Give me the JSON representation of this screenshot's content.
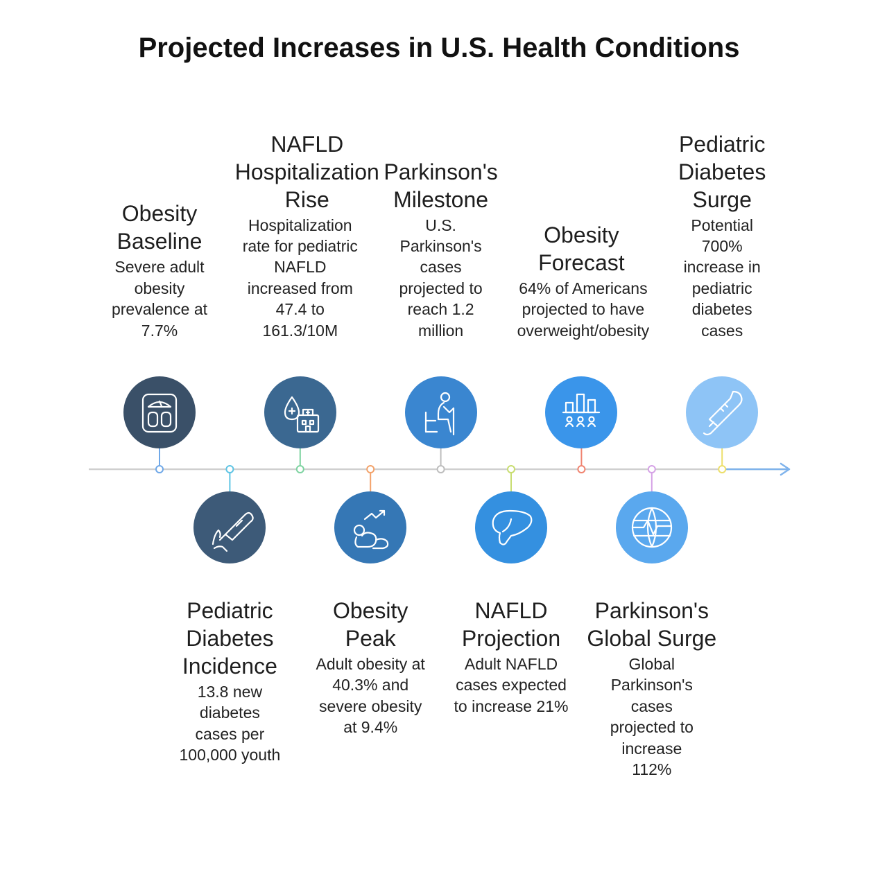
{
  "title": "Projected Increases in U.S. Health Conditions",
  "colors": {
    "axis": "#cfcfcf",
    "arrow": "#7fb3ec"
  },
  "events": [
    {
      "title": "Obesity Baseline",
      "desc": "Severe adult obesity prevalence at 7.7%",
      "side": "top",
      "icon": "scale-icon",
      "fill": "#3a5068",
      "stem": "#6fa8e8"
    },
    {
      "title": "Pediatric Diabetes Incidence",
      "desc": "13.8 new diabetes cases per 100,000 youth",
      "side": "bottom",
      "icon": "glucose-meter-icon",
      "fill": "#3d5a78",
      "stem": "#5ec4e4"
    },
    {
      "title": "NAFLD Hospitalization Rise",
      "desc": "Hospitalization rate for pediatric NAFLD increased from 47.4 to 161.3/10M",
      "side": "top",
      "icon": "blood-drop-hospital-icon",
      "fill": "#3b6891",
      "stem": "#7dd3a0"
    },
    {
      "title": "Obesity Peak",
      "desc": "Adult obesity at 40.3% and severe obesity at 9.4%",
      "side": "bottom",
      "icon": "obesity-trend-icon",
      "fill": "#3577b5",
      "stem": "#f3a26a"
    },
    {
      "title": "Parkinson's Milestone",
      "desc": "U.S. Parkinson's cases projected to reach 1.2 million",
      "side": "top",
      "icon": "elderly-person-icon",
      "fill": "#3a86d0",
      "stem": "#bdbdbd"
    },
    {
      "title": "NAFLD Projection",
      "desc": "Adult NAFLD cases expected to increase 21%",
      "side": "bottom",
      "icon": "liver-icon",
      "fill": "#3490e0",
      "stem": "#c8dd70"
    },
    {
      "title": "Obesity Forecast",
      "desc": "64% of Americans projected to have overweight/obesity",
      "side": "top",
      "icon": "population-chart-icon",
      "fill": "#3a95ea",
      "stem": "#f08470"
    },
    {
      "title": "Parkinson's Global Surge",
      "desc": "Global Parkinson's cases projected to increase 112%",
      "side": "bottom",
      "icon": "globe-pulse-icon",
      "fill": "#5aa8ee",
      "stem": "#d5a2e6"
    },
    {
      "title": "Pediatric Diabetes Surge",
      "desc": "Potential 700% increase in pediatric diabetes cases",
      "side": "top",
      "icon": "thermometer-icon",
      "fill": "#8ec4f6",
      "stem": "#ecdf6a"
    }
  ]
}
